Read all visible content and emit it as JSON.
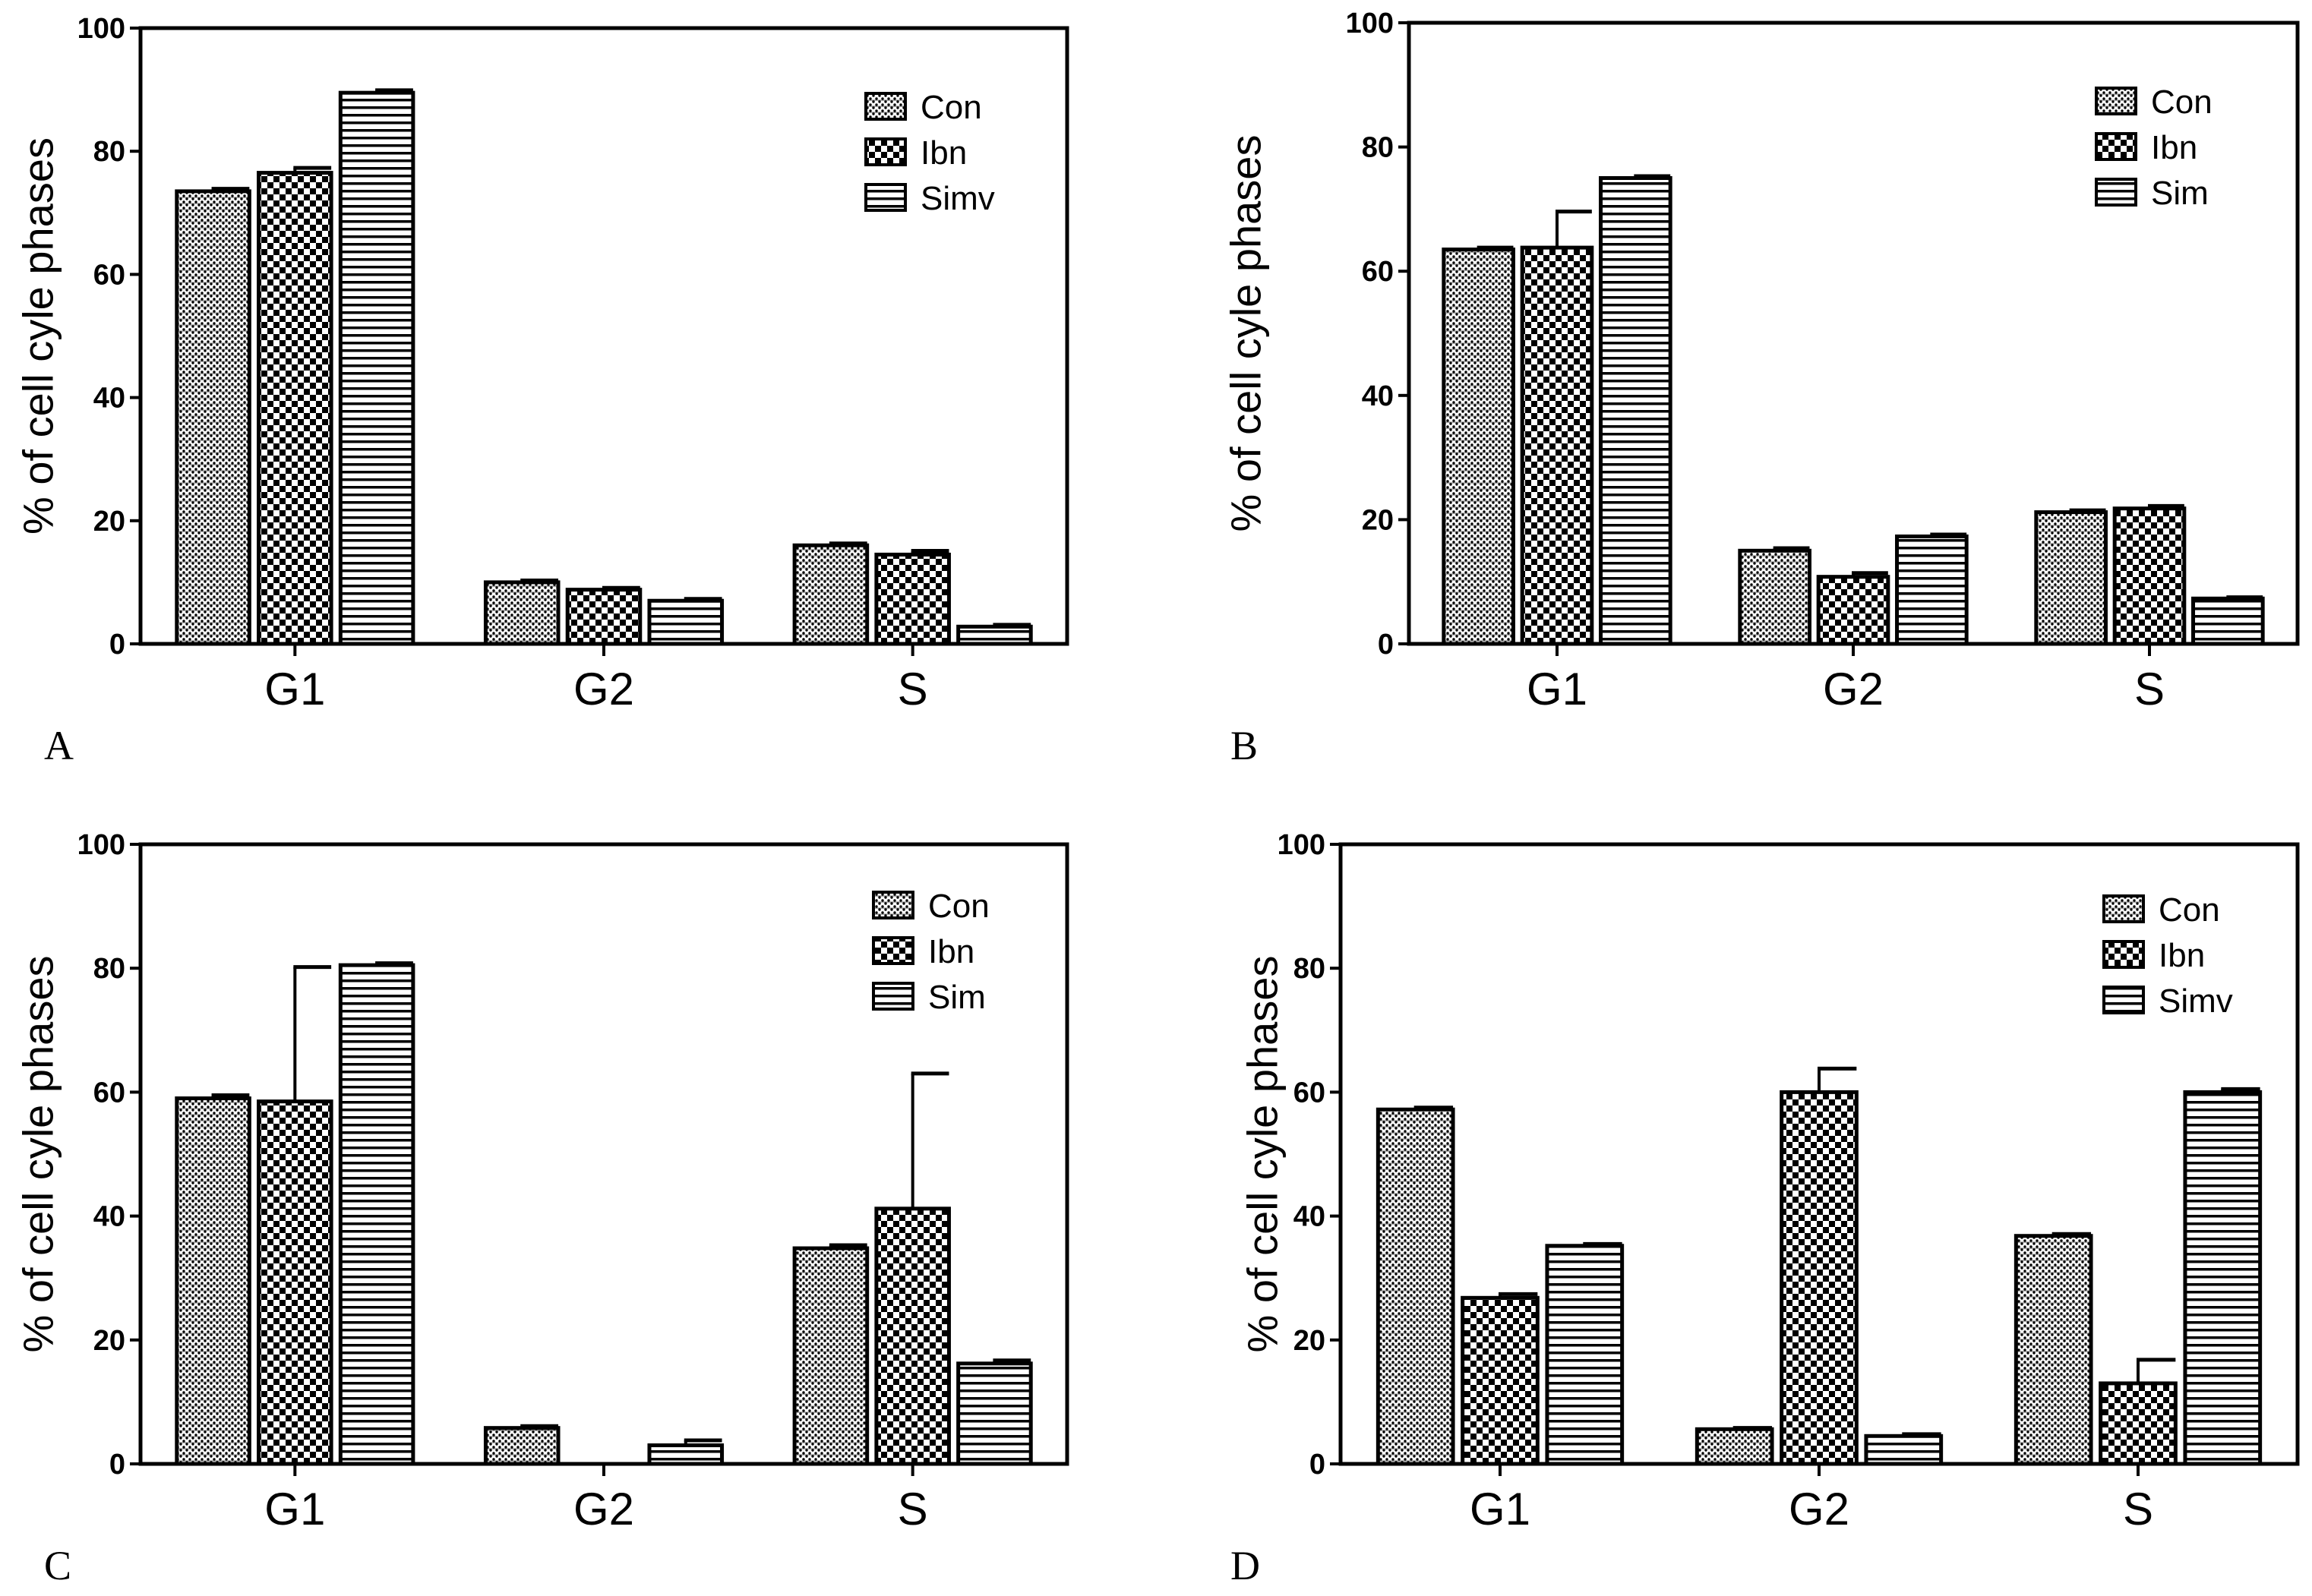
{
  "figure": {
    "background": "#ffffff",
    "ink": "#000000"
  },
  "chart_data": [
    {
      "type": "bar",
      "panel": "A",
      "ylabel": "% of cell cyle phases",
      "xlabel": "",
      "ylim": [
        0,
        100
      ],
      "yticks": [
        0,
        20,
        40,
        60,
        80,
        100
      ],
      "categories": [
        "G1",
        "G2",
        "S"
      ],
      "legend_position": "top-right",
      "series": [
        {
          "name": "Con",
          "pattern": "dots",
          "values": [
            73.5,
            10.0,
            16.0
          ],
          "errors": [
            0.4,
            0.3,
            0.3
          ]
        },
        {
          "name": "Ibn",
          "pattern": "checker",
          "values": [
            76.5,
            8.8,
            14.5
          ],
          "errors": [
            0.8,
            0.3,
            0.6
          ]
        },
        {
          "name": "Simv",
          "pattern": "hlines",
          "values": [
            89.5,
            7.0,
            2.8
          ],
          "errors": [
            0.4,
            0.3,
            0.3
          ]
        }
      ]
    },
    {
      "type": "bar",
      "panel": "B",
      "ylabel": "% of cell cyle phases",
      "xlabel": "",
      "ylim": [
        0,
        100
      ],
      "yticks": [
        0,
        20,
        40,
        60,
        80,
        100
      ],
      "categories": [
        "G1",
        "G2",
        "S"
      ],
      "legend_position": "top-right",
      "series": [
        {
          "name": "Con",
          "pattern": "dots",
          "values": [
            63.5,
            15.0,
            21.2
          ],
          "errors": [
            0.3,
            0.4,
            0.3
          ]
        },
        {
          "name": "Ibn",
          "pattern": "checker",
          "values": [
            63.8,
            10.8,
            21.8
          ],
          "errors": [
            5.8,
            0.6,
            0.4
          ]
        },
        {
          "name": "Sim",
          "pattern": "hlines",
          "values": [
            75.0,
            17.3,
            7.3
          ],
          "errors": [
            0.3,
            0.3,
            0.2
          ]
        }
      ]
    },
    {
      "type": "bar",
      "panel": "C",
      "ylabel": "% of cell cyle phases",
      "xlabel": "",
      "ylim": [
        0,
        100
      ],
      "yticks": [
        0,
        20,
        40,
        60,
        80,
        100
      ],
      "categories": [
        "G1",
        "G2",
        "S"
      ],
      "legend_position": "top-right",
      "series": [
        {
          "name": "Con",
          "pattern": "dots",
          "values": [
            59.0,
            5.8,
            34.8
          ],
          "errors": [
            0.5,
            0.3,
            0.5
          ]
        },
        {
          "name": "Ibn",
          "pattern": "checker",
          "values": [
            58.5,
            0.0,
            41.2
          ],
          "errors": [
            21.7,
            0.0,
            21.8
          ]
        },
        {
          "name": "Sim",
          "pattern": "hlines",
          "values": [
            80.5,
            3.0,
            16.2
          ],
          "errors": [
            0.3,
            0.8,
            0.5
          ]
        }
      ]
    },
    {
      "type": "bar",
      "panel": "D",
      "ylabel": "% of cell cyle phases",
      "xlabel": "",
      "ylim": [
        0,
        100
      ],
      "yticks": [
        0,
        20,
        40,
        60,
        80,
        100
      ],
      "categories": [
        "G1",
        "G2",
        "S"
      ],
      "legend_position": "top-right",
      "series": [
        {
          "name": "Con",
          "pattern": "dots",
          "values": [
            57.2,
            5.6,
            36.8
          ],
          "errors": [
            0.3,
            0.2,
            0.3
          ]
        },
        {
          "name": "Ibn",
          "pattern": "checker",
          "values": [
            26.8,
            60.0,
            13.0
          ],
          "errors": [
            0.6,
            3.8,
            3.8
          ]
        },
        {
          "name": "Simv",
          "pattern": "hlines",
          "values": [
            35.2,
            4.5,
            60.0
          ],
          "errors": [
            0.3,
            0.3,
            0.5
          ]
        }
      ]
    }
  ]
}
